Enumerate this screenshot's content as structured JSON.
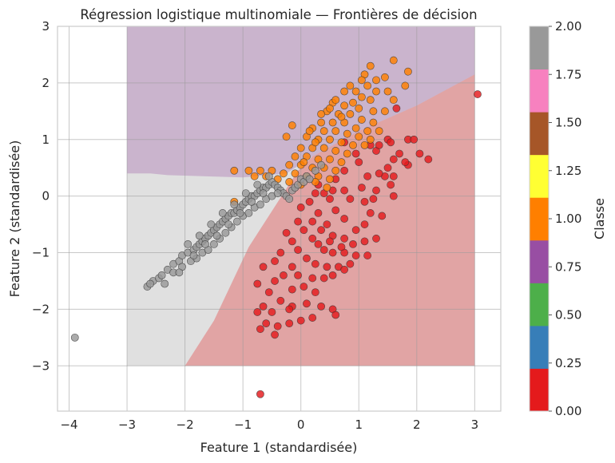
{
  "chart_data": {
    "type": "scatter",
    "title": "Régression logistique multinomiale — Frontières de décision",
    "xlabel": "Feature 1 (standardisée)",
    "ylabel": "Feature 2 (standardisée)",
    "xlim": [
      -4.2,
      3.45
    ],
    "ylim": [
      -3.8,
      3.0
    ],
    "x_ticks": [
      -4,
      -3,
      -2,
      -1,
      0,
      1,
      2,
      3
    ],
    "y_ticks": [
      -3,
      -2,
      -1,
      0,
      1,
      2,
      3
    ],
    "x_tick_labels": [
      "−4",
      "−3",
      "−2",
      "−1",
      "0",
      "1",
      "2",
      "3"
    ],
    "y_tick_labels": [
      "−3",
      "−2",
      "−1",
      "0",
      "1",
      "2",
      "3"
    ],
    "grid": true,
    "decision_regions": {
      "extent": [
        -3,
        3,
        -3,
        3
      ],
      "classes": [
        {
          "class": 0,
          "color": "#e41a1c"
        },
        {
          "class": 1,
          "color": "#984ea3"
        },
        {
          "class": 2,
          "color": "#999999"
        }
      ]
    },
    "colorbar": {
      "label": "Classe",
      "range": [
        0,
        2
      ],
      "tick_labels": [
        "0.00",
        "0.25",
        "0.50",
        "0.75",
        "1.00",
        "1.25",
        "1.50",
        "1.75",
        "2.00"
      ],
      "colors": [
        "#e41a1c",
        "#377eb8",
        "#4daf4a",
        "#984ea3",
        "#ff7f00",
        "#ffff33",
        "#a65628",
        "#f781bf",
        "#999999"
      ]
    },
    "series": [
      {
        "class": 0,
        "color": "#e41a1c",
        "points": [
          [
            3.05,
            1.8
          ],
          [
            1.65,
            1.55
          ],
          [
            1.85,
            0.55
          ],
          [
            1.5,
            1.0
          ],
          [
            2.05,
            0.75
          ],
          [
            2.2,
            0.65
          ],
          [
            1.85,
            1.0
          ],
          [
            1.95,
            1.0
          ],
          [
            1.55,
            0.95
          ],
          [
            1.3,
            0.8
          ],
          [
            1.2,
            0.9
          ],
          [
            0.75,
            0.95
          ],
          [
            0.95,
            0.75
          ],
          [
            1.0,
            0.6
          ],
          [
            1.6,
            0.65
          ],
          [
            1.5,
            0.5
          ],
          [
            1.45,
            0.35
          ],
          [
            1.35,
            0.4
          ],
          [
            1.55,
            0.2
          ],
          [
            1.6,
            0.0
          ],
          [
            1.15,
            0.35
          ],
          [
            0.75,
            0.45
          ],
          [
            0.6,
            0.3
          ],
          [
            0.55,
            0.1
          ],
          [
            0.75,
            0.1
          ],
          [
            0.85,
            -0.05
          ],
          [
            1.05,
            0.15
          ],
          [
            1.1,
            -0.1
          ],
          [
            1.25,
            -0.05
          ],
          [
            1.3,
            0.1
          ],
          [
            1.2,
            -0.3
          ],
          [
            1.4,
            -0.35
          ],
          [
            1.1,
            -0.5
          ],
          [
            0.95,
            -0.6
          ],
          [
            0.75,
            -0.4
          ],
          [
            0.6,
            -0.25
          ],
          [
            0.5,
            -0.05
          ],
          [
            0.4,
            0.05
          ],
          [
            0.3,
            0.2
          ],
          [
            0.25,
            0.05
          ],
          [
            0.15,
            -0.1
          ],
          [
            0.3,
            -0.3
          ],
          [
            0.45,
            -0.5
          ],
          [
            0.55,
            -0.7
          ],
          [
            0.75,
            -0.75
          ],
          [
            0.9,
            -0.85
          ],
          [
            1.1,
            -0.8
          ],
          [
            1.3,
            -0.75
          ],
          [
            1.15,
            -1.05
          ],
          [
            0.95,
            -1.05
          ],
          [
            0.75,
            -1.0
          ],
          [
            0.55,
            -1.0
          ],
          [
            0.4,
            -0.95
          ],
          [
            0.3,
            -0.85
          ],
          [
            0.2,
            -0.75
          ],
          [
            0.05,
            -0.6
          ],
          [
            -0.05,
            -0.45
          ],
          [
            0.0,
            -0.2
          ],
          [
            0.2,
            -0.45
          ],
          [
            0.35,
            -0.6
          ],
          [
            0.5,
            -0.8
          ],
          [
            0.7,
            -0.9
          ],
          [
            0.85,
            -1.2
          ],
          [
            0.65,
            -1.25
          ],
          [
            0.45,
            -1.25
          ],
          [
            0.25,
            -1.2
          ],
          [
            0.1,
            -1.1
          ],
          [
            -0.05,
            -0.95
          ],
          [
            -0.15,
            -0.8
          ],
          [
            -0.25,
            -0.65
          ],
          [
            -0.15,
            -1.25
          ],
          [
            -0.35,
            -1.0
          ],
          [
            -0.45,
            -1.15
          ],
          [
            -0.3,
            -1.4
          ],
          [
            -0.05,
            -1.4
          ],
          [
            0.2,
            -1.45
          ],
          [
            0.4,
            -1.45
          ],
          [
            0.55,
            -1.4
          ],
          [
            0.75,
            -1.3
          ],
          [
            0.25,
            -1.7
          ],
          [
            0.05,
            -1.6
          ],
          [
            -0.15,
            -1.65
          ],
          [
            -0.45,
            -1.5
          ],
          [
            -0.65,
            -1.25
          ],
          [
            -0.75,
            -1.55
          ],
          [
            -0.55,
            -1.7
          ],
          [
            -0.35,
            -1.85
          ],
          [
            -0.15,
            -1.95
          ],
          [
            0.1,
            -1.9
          ],
          [
            0.35,
            -1.95
          ],
          [
            0.55,
            -2.0
          ],
          [
            0.6,
            -2.1
          ],
          [
            0.2,
            -2.15
          ],
          [
            0.0,
            -2.2
          ],
          [
            -0.2,
            -2.25
          ],
          [
            -0.4,
            -2.3
          ],
          [
            -0.6,
            -2.25
          ],
          [
            -0.75,
            -2.05
          ],
          [
            -0.5,
            -2.05
          ],
          [
            -0.65,
            -1.95
          ],
          [
            -0.45,
            -2.45
          ],
          [
            -0.7,
            -2.35
          ],
          [
            -0.2,
            -2.0
          ],
          [
            1.6,
            0.35
          ],
          [
            1.7,
            0.75
          ],
          [
            1.35,
            0.9
          ],
          [
            1.8,
            0.6
          ],
          [
            -0.7,
            -3.5
          ]
        ]
      },
      {
        "class": 1,
        "color": "#ff7f00",
        "points": [
          [
            1.6,
            2.4
          ],
          [
            1.2,
            2.3
          ],
          [
            1.45,
            2.1
          ],
          [
            1.85,
            2.2
          ],
          [
            1.1,
            2.15
          ],
          [
            1.3,
            2.05
          ],
          [
            0.85,
            1.95
          ],
          [
            1.15,
            1.95
          ],
          [
            1.05,
            1.75
          ],
          [
            1.3,
            1.85
          ],
          [
            1.5,
            1.85
          ],
          [
            1.8,
            1.95
          ],
          [
            0.75,
            1.85
          ],
          [
            0.95,
            1.85
          ],
          [
            1.2,
            1.7
          ],
          [
            1.45,
            1.5
          ],
          [
            0.55,
            1.65
          ],
          [
            0.75,
            1.6
          ],
          [
            1.0,
            1.55
          ],
          [
            1.25,
            1.5
          ],
          [
            1.6,
            1.7
          ],
          [
            0.45,
            1.5
          ],
          [
            0.65,
            1.45
          ],
          [
            0.85,
            1.45
          ],
          [
            1.05,
            1.35
          ],
          [
            1.25,
            1.3
          ],
          [
            0.35,
            1.3
          ],
          [
            0.55,
            1.3
          ],
          [
            0.75,
            1.3
          ],
          [
            0.95,
            1.2
          ],
          [
            1.15,
            1.15
          ],
          [
            1.35,
            1.15
          ],
          [
            0.2,
            1.2
          ],
          [
            0.4,
            1.15
          ],
          [
            0.6,
            1.15
          ],
          [
            0.8,
            1.1
          ],
          [
            1.0,
            1.05
          ],
          [
            1.2,
            1.0
          ],
          [
            0.1,
            1.05
          ],
          [
            0.3,
            1.0
          ],
          [
            0.5,
            1.0
          ],
          [
            0.7,
            0.95
          ],
          [
            0.9,
            0.9
          ],
          [
            1.1,
            0.9
          ],
          [
            0.0,
            0.85
          ],
          [
            0.2,
            0.85
          ],
          [
            0.4,
            0.85
          ],
          [
            0.6,
            0.8
          ],
          [
            0.8,
            0.75
          ],
          [
            -0.1,
            0.7
          ],
          [
            0.1,
            0.7
          ],
          [
            0.3,
            0.65
          ],
          [
            0.5,
            0.65
          ],
          [
            0.7,
            0.6
          ],
          [
            -0.2,
            0.55
          ],
          [
            0.0,
            0.55
          ],
          [
            0.2,
            0.5
          ],
          [
            0.4,
            0.5
          ],
          [
            0.6,
            0.45
          ],
          [
            -0.3,
            0.4
          ],
          [
            -0.1,
            0.4
          ],
          [
            0.1,
            0.35
          ],
          [
            0.3,
            0.35
          ],
          [
            0.5,
            0.3
          ],
          [
            -0.5,
            0.45
          ],
          [
            -0.7,
            0.45
          ],
          [
            -0.9,
            0.45
          ],
          [
            -0.6,
            0.35
          ],
          [
            -0.4,
            0.3
          ],
          [
            -0.2,
            0.25
          ],
          [
            0.0,
            0.2
          ],
          [
            0.25,
            0.25
          ],
          [
            0.45,
            0.15
          ],
          [
            -1.15,
            0.45
          ],
          [
            -0.8,
            0.35
          ],
          [
            0.7,
            1.4
          ],
          [
            0.5,
            1.55
          ],
          [
            0.9,
            1.65
          ],
          [
            0.25,
            0.95
          ],
          [
            0.15,
            1.15
          ],
          [
            -0.25,
            1.05
          ],
          [
            -0.15,
            1.25
          ],
          [
            0.35,
            1.45
          ],
          [
            0.6,
            1.7
          ],
          [
            1.05,
            2.05
          ],
          [
            0.05,
            0.6
          ],
          [
            -1.15,
            -0.1
          ]
        ]
      },
      {
        "class": 2,
        "color": "#999999",
        "points": [
          [
            -3.9,
            -2.5
          ],
          [
            -2.65,
            -1.6
          ],
          [
            -2.55,
            -1.5
          ],
          [
            -2.6,
            -1.55
          ],
          [
            -2.45,
            -1.45
          ],
          [
            -2.4,
            -1.4
          ],
          [
            -2.3,
            -1.3
          ],
          [
            -2.2,
            -1.2
          ],
          [
            -2.1,
            -1.15
          ],
          [
            -2.05,
            -1.05
          ],
          [
            -1.95,
            -1.0
          ],
          [
            -1.85,
            -0.95
          ],
          [
            -1.8,
            -0.9
          ],
          [
            -1.75,
            -0.85
          ],
          [
            -1.7,
            -0.8
          ],
          [
            -1.65,
            -0.75
          ],
          [
            -1.6,
            -0.7
          ],
          [
            -1.55,
            -0.65
          ],
          [
            -1.5,
            -0.6
          ],
          [
            -1.45,
            -0.55
          ],
          [
            -1.4,
            -0.5
          ],
          [
            -1.35,
            -0.45
          ],
          [
            -1.3,
            -0.4
          ],
          [
            -1.25,
            -0.35
          ],
          [
            -1.2,
            -0.3
          ],
          [
            -1.15,
            -0.3
          ],
          [
            -1.1,
            -0.25
          ],
          [
            -1.05,
            -0.2
          ],
          [
            -1.0,
            -0.15
          ],
          [
            -0.95,
            -0.1
          ],
          [
            -0.9,
            -0.05
          ],
          [
            -0.85,
            0.0
          ],
          [
            -0.8,
            0.0
          ],
          [
            -0.75,
            0.05
          ],
          [
            -0.7,
            0.1
          ],
          [
            -0.65,
            0.15
          ],
          [
            -0.6,
            0.15
          ],
          [
            -0.55,
            0.2
          ],
          [
            -0.5,
            0.25
          ],
          [
            -0.45,
            0.2
          ],
          [
            -0.4,
            0.15
          ],
          [
            -0.35,
            0.1
          ],
          [
            -0.3,
            0.05
          ],
          [
            -0.25,
            0.0
          ],
          [
            -0.2,
            -0.05
          ],
          [
            -0.15,
            0.1
          ],
          [
            -0.1,
            0.15
          ],
          [
            -0.05,
            0.2
          ],
          [
            0.0,
            0.3
          ],
          [
            0.05,
            0.25
          ],
          [
            0.1,
            0.35
          ],
          [
            0.15,
            0.3
          ],
          [
            -2.35,
            -1.55
          ],
          [
            -2.2,
            -1.35
          ],
          [
            -2.05,
            -1.25
          ],
          [
            -1.9,
            -1.15
          ],
          [
            -1.8,
            -1.1
          ],
          [
            -1.7,
            -1.0
          ],
          [
            -1.6,
            -0.95
          ],
          [
            -1.5,
            -0.85
          ],
          [
            -1.4,
            -0.75
          ],
          [
            -1.3,
            -0.65
          ],
          [
            -1.2,
            -0.55
          ],
          [
            -1.1,
            -0.45
          ],
          [
            -1.0,
            -0.35
          ],
          [
            -0.9,
            -0.3
          ],
          [
            -0.8,
            -0.2
          ],
          [
            -0.7,
            -0.15
          ],
          [
            -0.6,
            -0.05
          ],
          [
            -0.5,
            0.0
          ],
          [
            -0.4,
            0.05
          ],
          [
            -1.95,
            -0.85
          ],
          [
            -1.75,
            -0.7
          ],
          [
            -1.55,
            -0.5
          ],
          [
            -1.35,
            -0.3
          ],
          [
            -1.15,
            -0.15
          ],
          [
            -0.95,
            0.05
          ],
          [
            -0.75,
            0.2
          ],
          [
            -0.55,
            0.35
          ],
          [
            0.35,
            0.55
          ],
          [
            0.25,
            0.45
          ],
          [
            -2.1,
            -1.35
          ],
          [
            -1.85,
            -1.05
          ],
          [
            -1.65,
            -0.85
          ],
          [
            -1.45,
            -0.7
          ],
          [
            -1.25,
            -0.5
          ],
          [
            -1.05,
            -0.3
          ],
          [
            -0.85,
            -0.1
          ],
          [
            -0.65,
            0.05
          ]
        ]
      }
    ]
  }
}
